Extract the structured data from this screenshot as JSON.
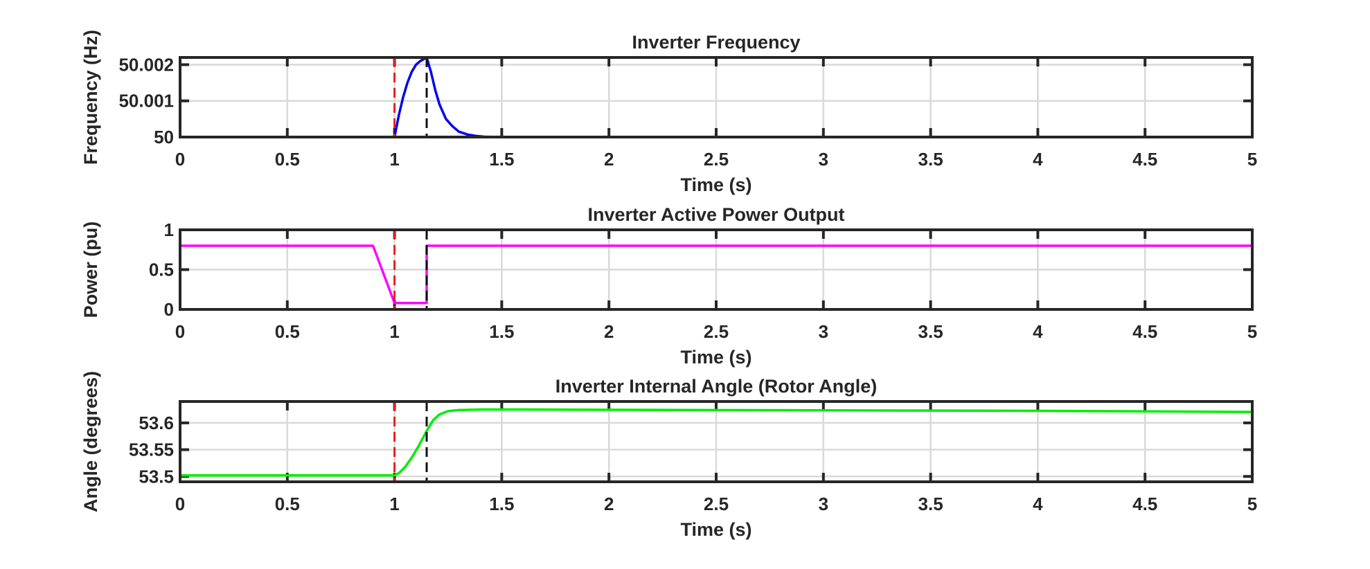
{
  "chart_data": [
    {
      "type": "line",
      "title": "Inverter Frequency",
      "xlabel": "Time (s)",
      "ylabel": "Frequency (Hz)",
      "xlim": [
        0,
        5
      ],
      "ylim": [
        50,
        50.0022
      ],
      "xticks": [
        0,
        0.5,
        1,
        1.5,
        2,
        2.5,
        3,
        3.5,
        4,
        4.5,
        5
      ],
      "xtick_labels": [
        "0",
        "0.5",
        "1",
        "1.5",
        "2",
        "2.5",
        "3",
        "3.5",
        "4",
        "4.5",
        "5"
      ],
      "yticks": [
        50,
        50.001,
        50.002
      ],
      "ytick_labels": [
        "50",
        "50.001",
        "50.002"
      ],
      "grid": true,
      "series": [
        {
          "color": "#0000ee",
          "x": [
            0,
            1.0,
            1.02,
            1.04,
            1.06,
            1.08,
            1.1,
            1.12,
            1.15,
            1.17,
            1.19,
            1.21,
            1.24,
            1.27,
            1.3,
            1.34,
            1.38,
            1.42,
            1.5,
            5
          ],
          "y": [
            50,
            50,
            50.0006,
            50.0011,
            50.0015,
            50.0018,
            50.002,
            50.0021,
            50.0022,
            50.0018,
            50.0013,
            50.0009,
            50.0005,
            50.0003,
            50.00015,
            50.00007,
            50.00003,
            50.00001,
            50,
            50
          ]
        }
      ],
      "vlines": [
        {
          "x": 1.0,
          "color": "#ee1c1c"
        },
        {
          "x": 1.15,
          "color": "#111111"
        }
      ]
    },
    {
      "type": "line",
      "title": "Inverter Active Power Output",
      "xlabel": "Time (s)",
      "ylabel": "Power (pu)",
      "xlim": [
        0,
        5
      ],
      "ylim": [
        0,
        1
      ],
      "xticks": [
        0,
        0.5,
        1,
        1.5,
        2,
        2.5,
        3,
        3.5,
        4,
        4.5,
        5
      ],
      "xtick_labels": [
        "0",
        "0.5",
        "1",
        "1.5",
        "2",
        "2.5",
        "3",
        "3.5",
        "4",
        "4.5",
        "5"
      ],
      "yticks": [
        0,
        0.5,
        1
      ],
      "ytick_labels": [
        "0",
        "0.5",
        "1"
      ],
      "grid": true,
      "series": [
        {
          "color": "#ff00ff",
          "x": [
            0,
            0.9,
            1.0,
            1.15,
            1.15,
            5
          ],
          "y": [
            0.8,
            0.8,
            0.08,
            0.08,
            0.8,
            0.8
          ]
        }
      ],
      "vlines": [
        {
          "x": 1.0,
          "color": "#ee1c1c"
        },
        {
          "x": 1.15,
          "color": "#111111"
        }
      ]
    },
    {
      "type": "line",
      "title": "Inverter Internal Angle (Rotor Angle)",
      "xlabel": "Time (s)",
      "ylabel": "Angle (degrees)",
      "xlim": [
        0,
        5
      ],
      "ylim": [
        53.49,
        53.64
      ],
      "xticks": [
        0,
        0.5,
        1,
        1.5,
        2,
        2.5,
        3,
        3.5,
        4,
        4.5,
        5
      ],
      "xtick_labels": [
        "0",
        "0.5",
        "1",
        "1.5",
        "2",
        "2.5",
        "3",
        "3.5",
        "4",
        "4.5",
        "5"
      ],
      "yticks": [
        53.5,
        53.55,
        53.6
      ],
      "ytick_labels": [
        "53.5",
        "53.55",
        "53.6"
      ],
      "grid": true,
      "series": [
        {
          "color": "#00ee00",
          "x": [
            0,
            1.0,
            1.02,
            1.05,
            1.08,
            1.11,
            1.15,
            1.18,
            1.21,
            1.25,
            1.3,
            1.4,
            1.6,
            2.0,
            3.0,
            4.0,
            5.0
          ],
          "y": [
            53.502,
            53.502,
            53.506,
            53.518,
            53.535,
            53.555,
            53.585,
            53.605,
            53.616,
            53.622,
            53.624,
            53.625,
            53.625,
            53.6245,
            53.6235,
            53.6225,
            53.6205
          ]
        }
      ],
      "vlines": [
        {
          "x": 1.0,
          "color": "#ee1c1c"
        },
        {
          "x": 1.15,
          "color": "#111111"
        }
      ]
    }
  ]
}
